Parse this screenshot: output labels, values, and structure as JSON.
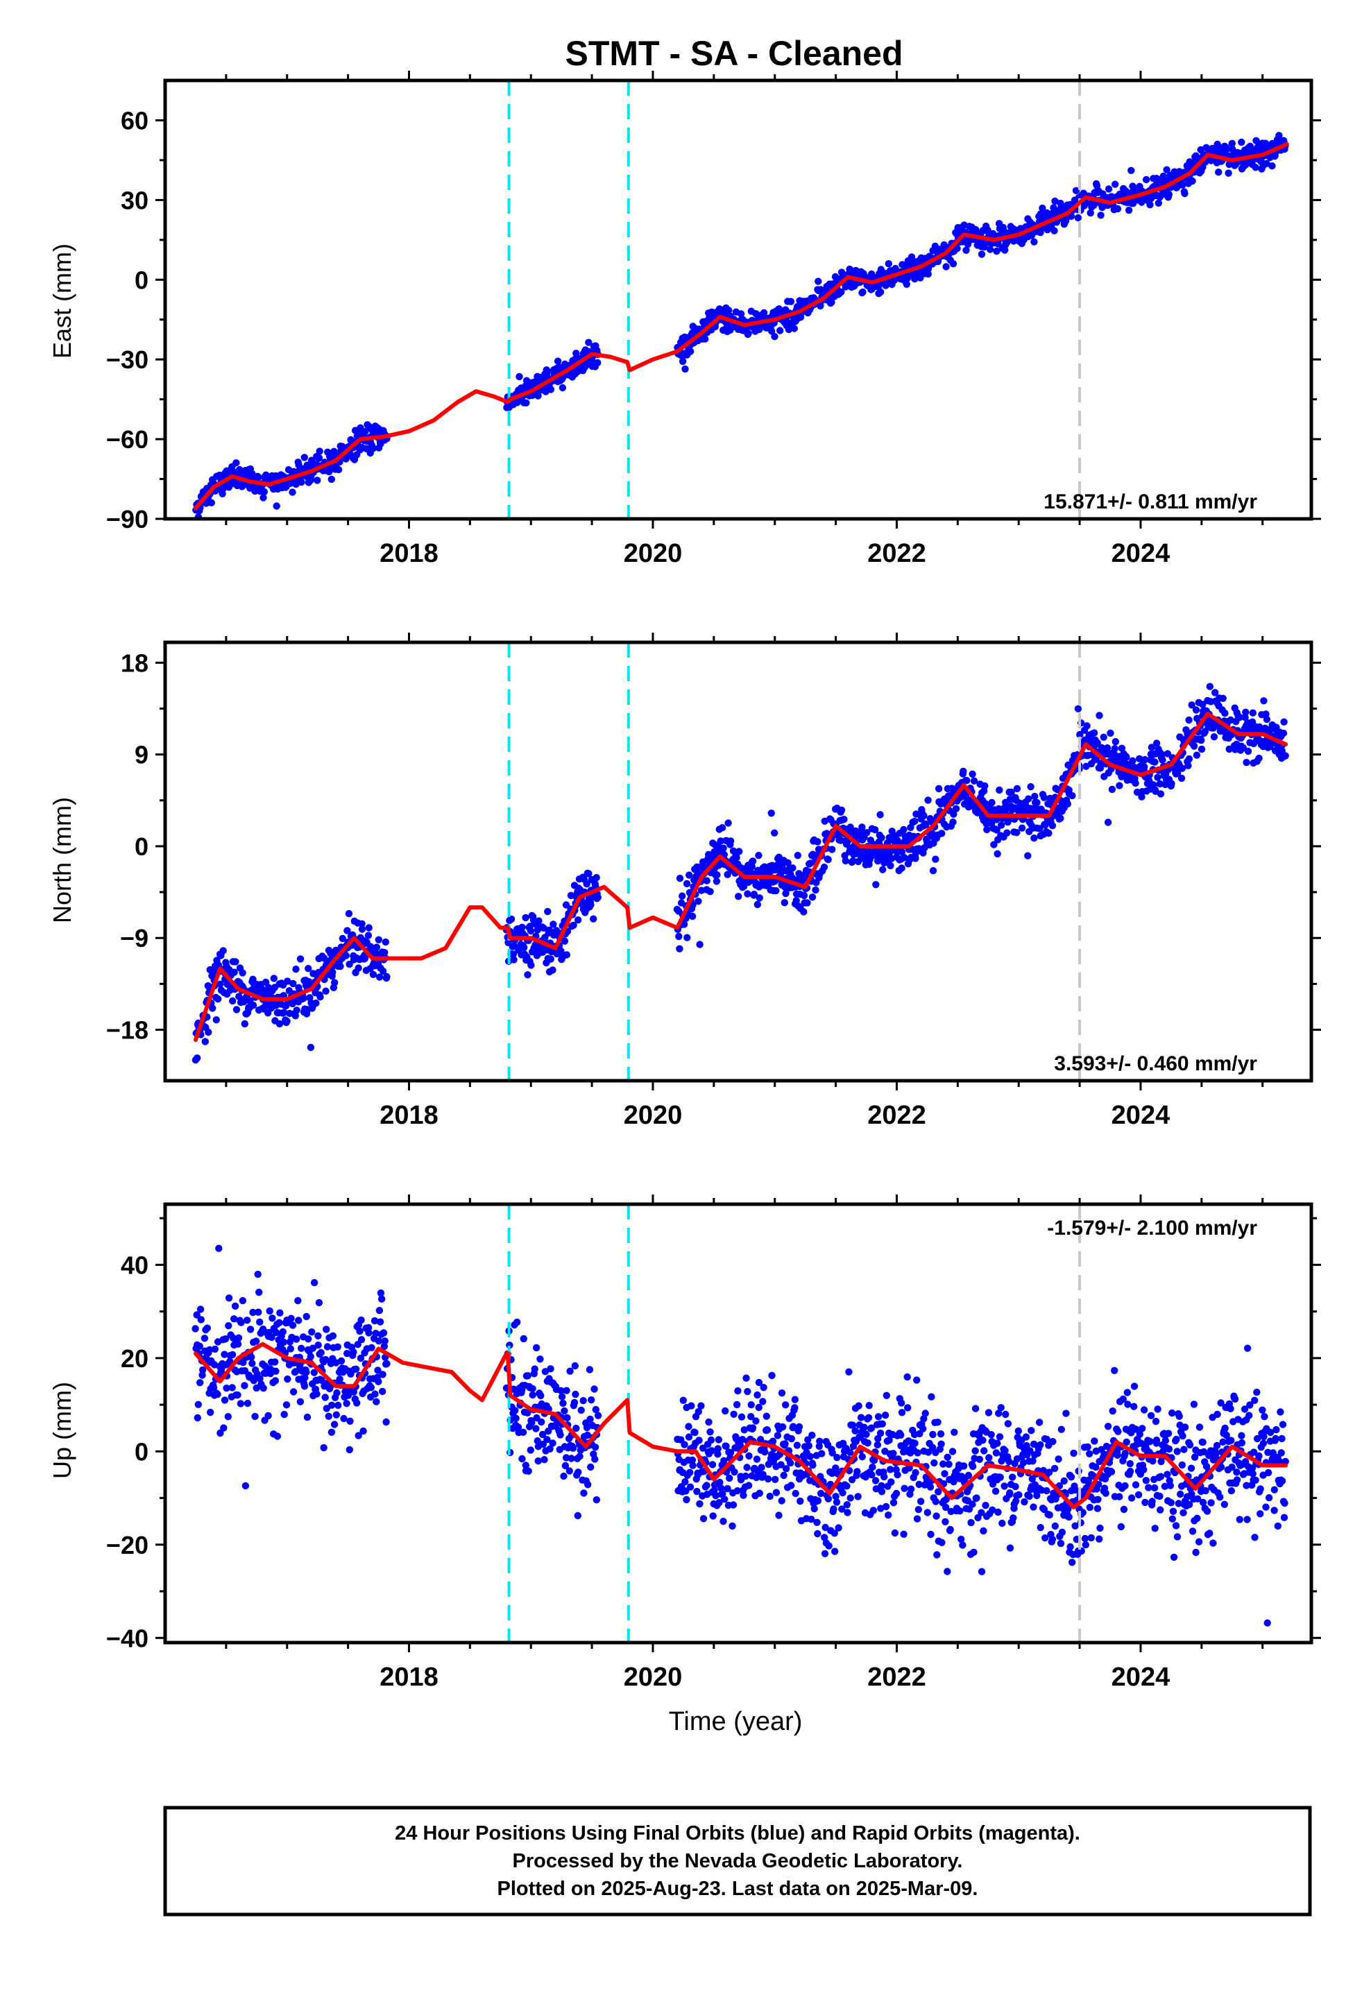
{
  "title": "STMT  - SA - Cleaned",
  "footer": {
    "line1": "24 Hour Positions Using Final Orbits (blue) and Rapid Orbits (magenta).",
    "line2": "Processed by the Nevada Geodetic Laboratory.",
    "line3": "Plotted on 2025-Aug-23. Last data on 2025-Mar-09."
  },
  "colors": {
    "points": "#0000ff",
    "model": "#ff0000",
    "offset_line": "#00e5ee",
    "grey_line": "#c8c8c8"
  },
  "chart_data": [
    {
      "type": "scatter",
      "ylabel": "East (mm)",
      "xlabel": "",
      "xlim": [
        2016.0,
        2025.4
      ],
      "ylim": [
        -90,
        75
      ],
      "xticks": [
        2018,
        2020,
        2022,
        2024
      ],
      "yticks": [
        -90,
        -60,
        -30,
        0,
        30,
        60
      ],
      "rate_text": "15.871+/- 0.811 mm/yr",
      "offset_lines": [
        2018.82,
        2019.8
      ],
      "grey_lines": [
        2023.5
      ],
      "data_ranges": [
        [
          2016.25,
          2017.82
        ],
        [
          2018.8,
          2019.55
        ],
        [
          2020.2,
          2025.19
        ]
      ],
      "model": {
        "x": [
          2016.25,
          2016.4,
          2016.55,
          2016.7,
          2016.85,
          2017.0,
          2017.2,
          2017.4,
          2017.6,
          2017.8,
          2018.0,
          2018.2,
          2018.4,
          2018.55,
          2018.7,
          2018.81,
          2018.83,
          2019.0,
          2019.15,
          2019.3,
          2019.5,
          2019.65,
          2019.79,
          2019.81,
          2020.0,
          2020.2,
          2020.4,
          2020.55,
          2020.75,
          2021.0,
          2021.2,
          2021.4,
          2021.6,
          2021.8,
          2022.0,
          2022.2,
          2022.4,
          2022.55,
          2022.8,
          2023.0,
          2023.2,
          2023.4,
          2023.55,
          2023.75,
          2024.0,
          2024.2,
          2024.4,
          2024.55,
          2024.75,
          2025.0,
          2025.2
        ],
        "y": [
          -86,
          -78,
          -74,
          -76,
          -77,
          -75,
          -72,
          -68,
          -60,
          -59,
          -57,
          -53,
          -46,
          -42,
          -44,
          -46,
          -45,
          -42,
          -38,
          -34,
          -28,
          -29,
          -31,
          -34,
          -30,
          -27,
          -20,
          -14,
          -17,
          -15,
          -12,
          -7,
          1,
          -1,
          2,
          5,
          10,
          17,
          15,
          17,
          21,
          25,
          31,
          29,
          32,
          35,
          40,
          47,
          45,
          47,
          51
        ]
      }
    },
    {
      "type": "scatter",
      "ylabel": "North (mm)",
      "xlabel": "",
      "xlim": [
        2016.0,
        2025.4
      ],
      "ylim": [
        -23,
        20
      ],
      "xticks": [
        2018,
        2020,
        2022,
        2024
      ],
      "yticks": [
        -18,
        -9,
        0,
        9,
        18
      ],
      "rate_text": "3.593+/- 0.460 mm/yr",
      "offset_lines": [
        2018.82,
        2019.8
      ],
      "grey_lines": [
        2023.5
      ],
      "data_ranges": [
        [
          2016.25,
          2017.82
        ],
        [
          2018.8,
          2019.55
        ],
        [
          2020.2,
          2025.19
        ]
      ],
      "model": {
        "x": [
          2016.25,
          2016.45,
          2016.6,
          2016.8,
          2017.0,
          2017.2,
          2017.4,
          2017.55,
          2017.7,
          2017.9,
          2018.1,
          2018.3,
          2018.5,
          2018.6,
          2018.75,
          2018.81,
          2018.83,
          2019.0,
          2019.2,
          2019.4,
          2019.6,
          2019.79,
          2019.81,
          2020.0,
          2020.2,
          2020.4,
          2020.55,
          2020.75,
          2021.0,
          2021.25,
          2021.5,
          2021.7,
          2021.9,
          2022.1,
          2022.3,
          2022.55,
          2022.75,
          2023.0,
          2023.25,
          2023.55,
          2023.75,
          2024.0,
          2024.25,
          2024.55,
          2024.8,
          2025.0,
          2025.19
        ],
        "y": [
          -19,
          -12,
          -14,
          -15,
          -15,
          -14,
          -11,
          -9,
          -11,
          -11,
          -11,
          -10,
          -6,
          -6,
          -8,
          -8,
          -9,
          -9,
          -10,
          -5,
          -4,
          -6,
          -8,
          -7,
          -8,
          -3,
          -1,
          -3,
          -3,
          -4,
          2,
          0,
          0,
          0,
          2,
          6,
          3,
          3,
          3,
          10,
          8,
          7,
          8,
          13,
          11,
          11,
          10
        ]
      }
    },
    {
      "type": "scatter",
      "ylabel": "Up (mm)",
      "xlabel": "Time (year)",
      "xlim": [
        2016.0,
        2025.4
      ],
      "ylim": [
        -41,
        53
      ],
      "xticks": [
        2018,
        2020,
        2022,
        2024
      ],
      "yticks": [
        -40,
        -20,
        0,
        20,
        40
      ],
      "rate_text": "-1.579+/- 2.100 mm/yr",
      "offset_lines": [
        2018.82,
        2019.8
      ],
      "grey_lines": [
        2023.5
      ],
      "data_ranges": [
        [
          2016.25,
          2017.82
        ],
        [
          2018.8,
          2019.55
        ],
        [
          2020.2,
          2025.19
        ]
      ],
      "model": {
        "x": [
          2016.25,
          2016.45,
          2016.6,
          2016.8,
          2017.0,
          2017.2,
          2017.4,
          2017.55,
          2017.75,
          2017.95,
          2018.15,
          2018.35,
          2018.5,
          2018.6,
          2018.8,
          2018.81,
          2018.83,
          2019.0,
          2019.2,
          2019.45,
          2019.6,
          2019.79,
          2019.81,
          2020.0,
          2020.2,
          2020.35,
          2020.5,
          2020.8,
          2021.0,
          2021.2,
          2021.45,
          2021.7,
          2021.9,
          2022.2,
          2022.45,
          2022.75,
          2023.0,
          2023.2,
          2023.45,
          2023.55,
          2023.8,
          2024.0,
          2024.2,
          2024.45,
          2024.75,
          2025.0,
          2025.19
        ],
        "y": [
          21,
          15,
          20,
          23,
          20,
          19,
          14,
          14,
          22,
          19,
          18,
          17,
          13,
          11,
          21,
          21,
          12,
          9,
          8,
          1,
          6,
          11,
          4,
          1,
          0,
          0,
          -6,
          2,
          1,
          -2,
          -9,
          1,
          -2,
          -3,
          -10,
          -3,
          -4,
          -5,
          -12,
          -10,
          2,
          -1,
          -1,
          -8,
          1,
          -3,
          -3
        ]
      }
    }
  ]
}
